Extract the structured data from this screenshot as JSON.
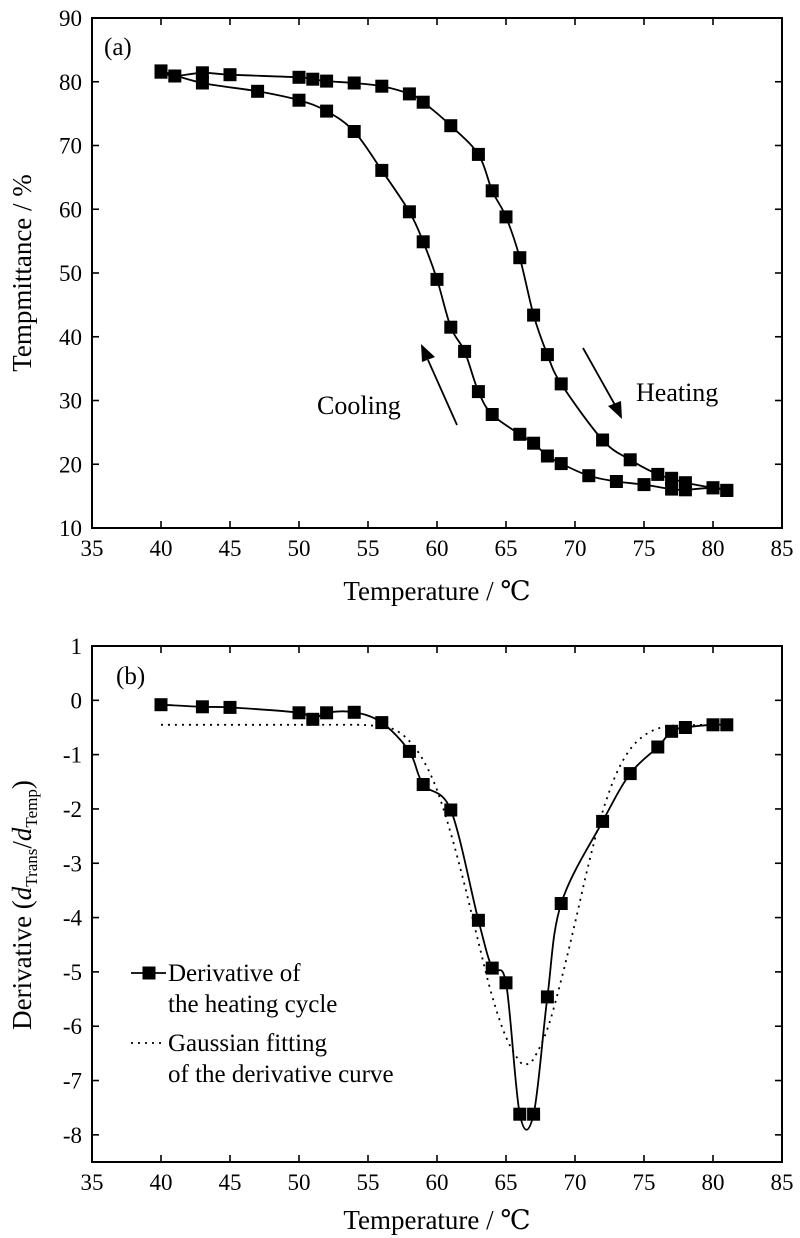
{
  "chart_data": [
    {
      "id": "a",
      "type": "line",
      "panel_label": "(a)",
      "xlabel": "Temperature / ℃",
      "ylabel": "Tempmittance / %",
      "xlim": [
        35,
        85
      ],
      "ylim": [
        10,
        90
      ],
      "xticks": [
        35,
        40,
        45,
        50,
        55,
        60,
        65,
        70,
        75,
        80,
        85
      ],
      "yticks": [
        10,
        20,
        30,
        40,
        50,
        60,
        70,
        80,
        90
      ],
      "grid": false,
      "annotations": [
        "Cooling",
        "Heating"
      ],
      "series": [
        {
          "key": "heating",
          "marker": "square",
          "x": [
            40,
            41,
            43,
            45,
            50,
            51,
            52,
            54,
            56,
            58,
            59,
            61,
            63,
            64,
            65,
            66,
            67,
            68,
            69,
            72,
            74,
            76,
            77,
            78,
            80,
            81
          ],
          "y": [
            81.5,
            80.9,
            81.4,
            81.1,
            80.7,
            80.4,
            80.1,
            79.8,
            79.3,
            78.1,
            76.8,
            73.1,
            68.6,
            62.9,
            58.8,
            52.4,
            43.4,
            37.2,
            32.6,
            23.8,
            20.7,
            18.4,
            17.8,
            17.1,
            16.3,
            15.9
          ]
        },
        {
          "key": "cooling",
          "marker": "square",
          "x": [
            40,
            43,
            47,
            50,
            52,
            54,
            56,
            58,
            59,
            60,
            61,
            62,
            63,
            64,
            66,
            67,
            68,
            69,
            71,
            73,
            75,
            77,
            78,
            80,
            81
          ],
          "y": [
            81.7,
            79.8,
            78.5,
            77.1,
            75.4,
            72.2,
            66.1,
            59.6,
            54.9,
            49.0,
            41.5,
            37.7,
            31.4,
            27.8,
            24.7,
            23.3,
            21.3,
            20.1,
            18.2,
            17.3,
            16.8,
            16.1,
            16.0,
            16.3,
            15.9
          ]
        }
      ]
    },
    {
      "id": "b",
      "type": "line",
      "panel_label": "(b)",
      "xlabel": "Temperature / ℃",
      "ylabel_main": "Derivative (",
      "ylabel_d1": "d",
      "ylabel_sub1": "Trans",
      "ylabel_slash": "/",
      "ylabel_d2": "d",
      "ylabel_sub2": "Temp",
      "ylabel_close": ")",
      "xlim": [
        35,
        85
      ],
      "ylim": [
        -8.5,
        1
      ],
      "xticks": [
        35,
        40,
        45,
        50,
        55,
        60,
        65,
        70,
        75,
        80,
        85
      ],
      "yticks": [
        1,
        0,
        -1,
        -2,
        -3,
        -4,
        -5,
        -6,
        -7,
        -8
      ],
      "grid": false,
      "legend_position": "lower-left",
      "series": [
        {
          "key": "derivative",
          "name": "Derivative of the heating cycle",
          "name_lines": [
            "Derivative of",
            "the heating cycle"
          ],
          "style": "solid-with-square-markers",
          "x": [
            40,
            43,
            45,
            50,
            51,
            52,
            54,
            56,
            58,
            59,
            61,
            63,
            64,
            65,
            66,
            67,
            68,
            69,
            72,
            74,
            76,
            77,
            78,
            80,
            81
          ],
          "y": [
            -0.08,
            -0.12,
            -0.13,
            -0.23,
            -0.35,
            -0.23,
            -0.22,
            -0.41,
            -0.94,
            -1.55,
            -2.02,
            -4.05,
            -4.93,
            -5.2,
            -7.62,
            -7.62,
            -5.46,
            -3.74,
            -2.23,
            -1.35,
            -0.86,
            -0.57,
            -0.5,
            -0.45,
            -0.45
          ]
        },
        {
          "key": "gaussian",
          "name": "Gaussian fitting of the derivative curve",
          "name_lines": [
            "Gaussian fitting",
            "of the derivative curve"
          ],
          "style": "dotted",
          "x": [
            40,
            45,
            50,
            54,
            55,
            56,
            57,
            58,
            59,
            60,
            61,
            62,
            63,
            64,
            65,
            66,
            66.5,
            67,
            68,
            69,
            70,
            71,
            72,
            73,
            74,
            75,
            76,
            77,
            78,
            80,
            81
          ],
          "y": [
            -0.45,
            -0.45,
            -0.45,
            -0.45,
            -0.46,
            -0.48,
            -0.55,
            -0.75,
            -1.1,
            -1.65,
            -2.45,
            -3.4,
            -4.45,
            -5.45,
            -6.2,
            -6.65,
            -6.7,
            -6.6,
            -6.05,
            -5.15,
            -4.1,
            -3.0,
            -2.05,
            -1.35,
            -0.9,
            -0.65,
            -0.52,
            -0.47,
            -0.46,
            -0.45,
            -0.45
          ]
        }
      ]
    }
  ]
}
